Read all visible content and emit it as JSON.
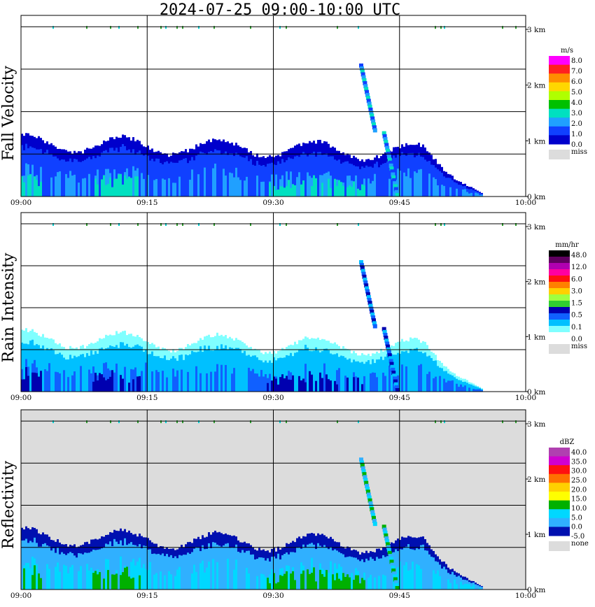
{
  "title": "2024-07-25   09:00-10:00 UTC",
  "time_ticks": [
    "09:00",
    "09:15",
    "09:30",
    "09:45",
    "10:00"
  ],
  "height_ticks": [
    "0 km",
    "1 km",
    "2 km",
    "3 km"
  ],
  "colors": {
    "missing_background": "#dcdcdc",
    "green_marker": "#2ca02c",
    "cyan_marker": "#00d4d4"
  },
  "chart_data": [
    {
      "type": "heatmap",
      "title": "Fall Velocity",
      "ylabel": "Fall Velocity",
      "x_range": [
        "09:00",
        "10:00"
      ],
      "y_range_km": [
        0,
        3.2
      ],
      "grid": true,
      "colorbar": {
        "unit": "m/s",
        "labels": [
          "8.0",
          "7.0",
          "6.0",
          "5.0",
          "4.0",
          "3.0",
          "2.0",
          "1.0",
          "0.0"
        ],
        "colors": [
          "#ff00ff",
          "#ff2020",
          "#ff8c00",
          "#ffd700",
          "#b0ff00",
          "#00c000",
          "#00e0c0",
          "#20a0ff",
          "#1040ff",
          "#0000cc"
        ],
        "missing_label": "miss",
        "missing_color": "#dcdcdc"
      }
    },
    {
      "type": "heatmap",
      "title": "Rain Intensity",
      "ylabel": "Rain Intensity",
      "x_range": [
        "09:00",
        "10:00"
      ],
      "y_range_km": [
        0,
        3.2
      ],
      "grid": true,
      "colorbar": {
        "unit": "mm/hr",
        "labels": [
          "48.0",
          "12.0",
          "6.0",
          "3.0",
          "1.5",
          "0.5",
          "0.1",
          "0.0"
        ],
        "colors": [
          "#000000",
          "#600060",
          "#b000b0",
          "#ff00a0",
          "#ff1010",
          "#ff8000",
          "#ffd000",
          "#a0ff40",
          "#30d030",
          "#0000b0",
          "#1060ff",
          "#00c0ff",
          "#80ffff",
          "#ffffff"
        ],
        "missing_label": "miss",
        "missing_color": "#dcdcdc"
      }
    },
    {
      "type": "heatmap",
      "title": "Reflectivity",
      "ylabel": "Reflectivity",
      "x_range": [
        "09:00",
        "10:00"
      ],
      "y_range_km": [
        0,
        3.2
      ],
      "grid": true,
      "background": "#dcdcdc",
      "colorbar": {
        "unit": "dBZ",
        "labels": [
          "40.0",
          "35.0",
          "30.0",
          "25.0",
          "20.0",
          "15.0",
          "10.0",
          "5.0",
          "0.0",
          "-5.0"
        ],
        "colors": [
          "#b040b0",
          "#d000d0",
          "#ff1010",
          "#ff7000",
          "#ffd000",
          "#ffff00",
          "#00b000",
          "#00d8ff",
          "#30b0ff",
          "#0010b0"
        ],
        "missing_label": "none",
        "missing_color": "#dcdcdc"
      }
    }
  ]
}
